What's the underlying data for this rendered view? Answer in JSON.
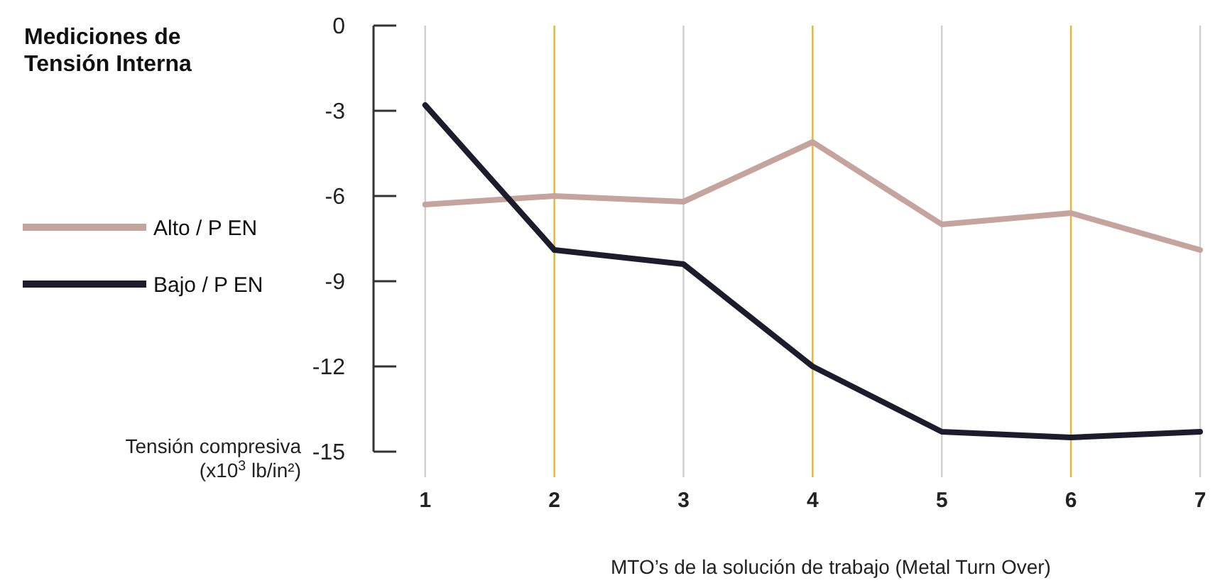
{
  "chart_data": {
    "type": "line",
    "title": "Mediciones de Tensión Interna",
    "xlabel": "MTO’s de la solución de trabajo (Metal Turn Over)",
    "ylabel": "Tensión compresiva (x10$^{3}$ lb/in²)",
    "x": [
      1,
      2,
      3,
      4,
      5,
      6,
      7
    ],
    "xlim": [
      0.6,
      7
    ],
    "xticks": [
      1,
      2,
      3,
      4,
      5,
      6,
      7
    ],
    "ylim": [
      -15,
      0
    ],
    "yticks": [
      0,
      -3,
      -6,
      -9,
      -12,
      -15
    ],
    "grid": "x",
    "legend": "left",
    "marker": "none",
    "line_style": "solid",
    "series": [
      {
        "name": "Alto / P EN",
        "color": "#c4a49c",
        "values": [
          -6.3,
          -6.0,
          -6.2,
          -4.1,
          -7.0,
          -6.6,
          -7.9
        ]
      },
      {
        "name": "Bajo / P EN",
        "color": "#1c1c2c",
        "values": [
          -2.8,
          -7.9,
          -8.4,
          -12.0,
          -14.3,
          -14.5,
          -14.3
        ]
      }
    ]
  }
}
